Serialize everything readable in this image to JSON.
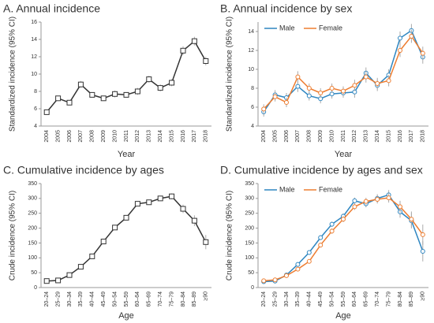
{
  "chart_data": [
    {
      "type": "line",
      "title": "A. Annual incidence",
      "x_label": "Year",
      "y_label": "Standardized incidence (95% CI)",
      "marker": "square",
      "categories": [
        "2004",
        "2005",
        "2006",
        "2007",
        "2008",
        "2009",
        "2010",
        "2011",
        "2012",
        "2013",
        "2014",
        "2015",
        "2016",
        "2017",
        "2018"
      ],
      "series": [
        {
          "color": "#333333",
          "values": [
            5.6,
            7.2,
            6.7,
            8.8,
            7.6,
            7.2,
            7.7,
            7.6,
            8.0,
            9.4,
            8.4,
            9.0,
            12.7,
            13.8,
            11.5
          ],
          "errors": [
            0.3,
            0.3,
            0.3,
            0.4,
            0.3,
            0.3,
            0.4,
            0.3,
            0.4,
            0.4,
            0.4,
            0.4,
            0.5,
            0.5,
            0.5
          ]
        }
      ],
      "ylim": [
        4,
        16
      ],
      "yticks": [
        4,
        6,
        8,
        10,
        12,
        14,
        16
      ]
    },
    {
      "type": "line",
      "title": "B. Annual incidence by sex",
      "x_label": "Year",
      "y_label": "Standardized incidence (95% CI)",
      "marker": "circle",
      "legend": "upper left",
      "categories": [
        "2004",
        "2005",
        "2006",
        "2007",
        "2008",
        "2009",
        "2010",
        "2011",
        "2012",
        "2013",
        "2014",
        "2015",
        "2016",
        "2017",
        "2018"
      ],
      "series": [
        {
          "name": "Male",
          "color": "#2e86c1",
          "values": [
            5.5,
            7.3,
            7.0,
            8.2,
            7.2,
            6.9,
            7.4,
            7.5,
            7.6,
            9.6,
            8.3,
            9.4,
            13.3,
            14.1,
            11.3
          ],
          "errors": [
            0.5,
            0.5,
            0.5,
            0.6,
            0.5,
            0.5,
            0.5,
            0.5,
            0.6,
            0.6,
            0.6,
            0.6,
            0.7,
            0.7,
            0.7
          ]
        },
        {
          "name": "Female",
          "color": "#ed7d31",
          "values": [
            5.8,
            7.1,
            6.5,
            9.2,
            8.0,
            7.5,
            8.0,
            7.7,
            8.3,
            9.2,
            8.5,
            8.8,
            12.0,
            13.5,
            11.7
          ],
          "errors": [
            0.5,
            0.5,
            0.5,
            0.6,
            0.5,
            0.5,
            0.5,
            0.5,
            0.6,
            0.6,
            0.6,
            0.6,
            0.7,
            0.7,
            0.7
          ]
        }
      ],
      "ylim": [
        4,
        15
      ],
      "yticks": [
        4,
        6,
        8,
        10,
        12,
        14
      ]
    },
    {
      "type": "line",
      "title": "C. Cumulative incidence by ages",
      "x_label": "Age",
      "y_label": "Crude incidence (95% CI)",
      "marker": "square",
      "categories": [
        "20–24",
        "25–29",
        "30–34",
        "35–39",
        "40–44",
        "45–49",
        "50–54",
        "55–59",
        "60–64",
        "65–69",
        "70–74",
        "75–79",
        "80–84",
        "85–89",
        "≥90"
      ],
      "series": [
        {
          "color": "#333333",
          "values": [
            22,
            24,
            42,
            70,
            105,
            155,
            202,
            235,
            282,
            287,
            300,
            307,
            265,
            225,
            153
          ],
          "errors": [
            3,
            3,
            4,
            5,
            5,
            6,
            6,
            7,
            7,
            8,
            9,
            10,
            14,
            18,
            24
          ]
        }
      ],
      "ylim": [
        0,
        350
      ],
      "yticks": [
        0,
        50,
        100,
        150,
        200,
        250,
        300,
        350
      ]
    },
    {
      "type": "line",
      "title": "D. Cumulative incidence by ages and sex",
      "x_label": "Age",
      "y_label": "Crude incidence (95% CI)",
      "marker": "circle",
      "legend": "upper left",
      "categories": [
        "20–24",
        "25–29",
        "30–34",
        "35–39",
        "40–44",
        "45–49",
        "50–54",
        "55–59",
        "60–64",
        "65–69",
        "70–74",
        "75–79",
        "80–84",
        "85–89",
        "≥90"
      ],
      "series": [
        {
          "name": "Male",
          "color": "#2e86c1",
          "values": [
            20,
            22,
            42,
            78,
            118,
            168,
            213,
            240,
            292,
            282,
            300,
            312,
            255,
            225,
            122
          ],
          "errors": [
            4,
            4,
            5,
            6,
            7,
            8,
            9,
            10,
            11,
            12,
            14,
            16,
            20,
            26,
            34
          ]
        },
        {
          "name": "Female",
          "color": "#ed7d31",
          "values": [
            23,
            26,
            40,
            62,
            88,
            143,
            190,
            230,
            272,
            290,
            297,
            302,
            272,
            230,
            178
          ],
          "errors": [
            4,
            4,
            5,
            6,
            7,
            8,
            9,
            10,
            11,
            12,
            14,
            16,
            20,
            26,
            34
          ]
        }
      ],
      "ylim": [
        0,
        350
      ],
      "yticks": [
        0,
        50,
        100,
        150,
        200,
        250,
        300,
        350
      ]
    }
  ]
}
